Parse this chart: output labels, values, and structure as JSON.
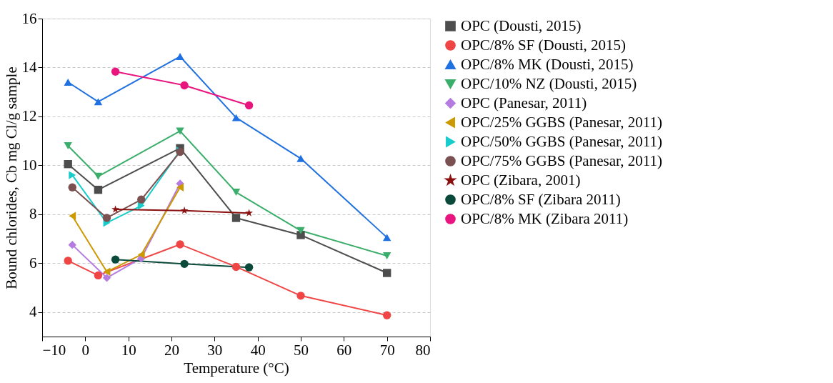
{
  "chart_data": {
    "type": "line",
    "xlabel": "Temperature (°C)",
    "ylabel": "Bound chlorides, Cb mg Cl/g sample",
    "xlim": [
      -10,
      80
    ],
    "xticks": [
      -10,
      0,
      10,
      20,
      30,
      40,
      50,
      60,
      70,
      80
    ],
    "ylim": [
      3,
      16
    ],
    "yticks": [
      4,
      6,
      8,
      10,
      12,
      14,
      16
    ],
    "grid": "y",
    "legend": "right",
    "line_style": "solid",
    "series": [
      {
        "name": "OPC (Dousti, 2015)",
        "color": "#4d4d4d",
        "marker": "square",
        "x": [
          -4,
          3,
          22,
          35,
          50,
          70
        ],
        "values": [
          10.05,
          9.0,
          10.7,
          7.85,
          7.15,
          5.6
        ]
      },
      {
        "name": "OPC/8% SF (Dousti, 2015)",
        "color": "#f04545",
        "marker": "circle",
        "x": [
          -4,
          3,
          22,
          35,
          50,
          70
        ],
        "values": [
          6.1,
          5.5,
          6.77,
          5.85,
          4.67,
          3.87
        ]
      },
      {
        "name": "OPC/8% MK (Dousti, 2015)",
        "color": "#1f70e0",
        "marker": "triangle",
        "x": [
          -4,
          3,
          22,
          35,
          50,
          70
        ],
        "values": [
          13.4,
          12.6,
          14.45,
          11.95,
          10.28,
          7.05
        ]
      },
      {
        "name": "OPC/10% NZ (Dousti, 2015)",
        "color": "#3aae6a",
        "marker": "triangle-down",
        "x": [
          -4,
          3,
          22,
          35,
          50,
          70
        ],
        "values": [
          10.8,
          9.55,
          11.4,
          8.9,
          7.33,
          6.3
        ]
      },
      {
        "name": "OPC (Panesar, 2011)",
        "color": "#b57be0",
        "marker": "diamond",
        "x": [
          -3,
          5,
          13,
          22
        ],
        "values": [
          6.75,
          5.4,
          6.2,
          9.25
        ]
      },
      {
        "name": "OPC/25% GGBS (Panesar, 2011)",
        "color": "#cc9900",
        "marker": "triangle-left",
        "x": [
          -3,
          5,
          13,
          22
        ],
        "values": [
          7.93,
          5.65,
          6.35,
          9.1
        ]
      },
      {
        "name": "OPC/50% GGBS (Panesar, 2011)",
        "color": "#18cccc",
        "marker": "triangle-right",
        "x": [
          -3,
          5,
          13,
          22
        ],
        "values": [
          9.6,
          7.65,
          8.35,
          10.6
        ]
      },
      {
        "name": "OPC/75% GGBS (Panesar, 2011)",
        "color": "#7a5050",
        "marker": "circle",
        "x": [
          -3,
          5,
          13,
          22
        ],
        "values": [
          9.1,
          7.85,
          8.6,
          10.55
        ]
      },
      {
        "name": "OPC (Zibara, 2001)",
        "color": "#8b1010",
        "marker": "star",
        "x": [
          7,
          23,
          38
        ],
        "values": [
          8.2,
          8.15,
          8.05
        ]
      },
      {
        "name": "OPC/8% SF (Zibara 2011)",
        "color": "#0b4a3a",
        "marker": "circle",
        "x": [
          7,
          23,
          38
        ],
        "values": [
          6.15,
          5.97,
          5.83
        ]
      },
      {
        "name": "OPC/8% MK (Zibara 2011)",
        "color": "#e8157f",
        "marker": "circle",
        "x": [
          7,
          23,
          38
        ],
        "values": [
          13.83,
          13.27,
          12.45
        ]
      }
    ]
  }
}
